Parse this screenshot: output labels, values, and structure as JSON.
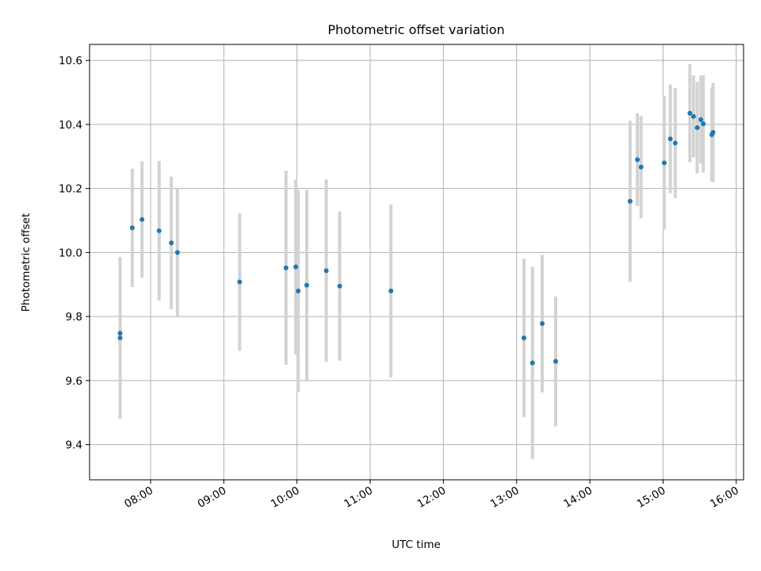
{
  "chart_data": {
    "type": "scatter",
    "title": "Photometric offset variation",
    "xlabel": "UTC time",
    "ylabel": "Photometric offset",
    "x_axis_type": "time",
    "xlim": [
      "07:10",
      "16:06"
    ],
    "ylim": [
      9.29,
      10.65
    ],
    "x_ticks": [
      "08:00",
      "09:00",
      "10:00",
      "11:00",
      "12:00",
      "13:00",
      "14:00",
      "15:00",
      "16:00"
    ],
    "y_ticks": [
      9.4,
      9.6,
      9.8,
      10.0,
      10.2,
      10.4,
      10.6
    ],
    "grid": true,
    "legend": "none",
    "point_color": "#1f77b4",
    "errorbar_color": "#d3d3d3",
    "points": [
      {
        "time": "07:35",
        "y": 9.733,
        "err": 0.253
      },
      {
        "time": "07:35",
        "y": 9.748,
        "err": 0.238
      },
      {
        "time": "07:45",
        "y": 10.077,
        "err": 0.185
      },
      {
        "time": "07:53",
        "y": 10.103,
        "err": 0.182
      },
      {
        "time": "08:07",
        "y": 10.068,
        "err": 0.218
      },
      {
        "time": "08:17",
        "y": 10.03,
        "err": 0.207
      },
      {
        "time": "08:22",
        "y": 10.0,
        "err": 0.2
      },
      {
        "time": "09:13",
        "y": 9.908,
        "err": 0.215
      },
      {
        "time": "09:51",
        "y": 9.952,
        "err": 0.303
      },
      {
        "time": "09:59",
        "y": 9.955,
        "err": 0.273
      },
      {
        "time": "10:01",
        "y": 9.88,
        "err": 0.315
      },
      {
        "time": "10:08",
        "y": 9.898,
        "err": 0.297
      },
      {
        "time": "10:24",
        "y": 9.943,
        "err": 0.285
      },
      {
        "time": "10:35",
        "y": 9.895,
        "err": 0.233
      },
      {
        "time": "11:17",
        "y": 9.88,
        "err": 0.27
      },
      {
        "time": "13:06",
        "y": 9.733,
        "err": 0.247
      },
      {
        "time": "13:13",
        "y": 9.655,
        "err": 0.3
      },
      {
        "time": "13:21",
        "y": 9.778,
        "err": 0.215
      },
      {
        "time": "13:32",
        "y": 9.66,
        "err": 0.203
      },
      {
        "time": "14:33",
        "y": 10.16,
        "err": 0.252
      },
      {
        "time": "14:39",
        "y": 10.29,
        "err": 0.145
      },
      {
        "time": "14:42",
        "y": 10.267,
        "err": 0.16
      },
      {
        "time": "15:01",
        "y": 10.28,
        "err": 0.208
      },
      {
        "time": "15:06",
        "y": 10.355,
        "err": 0.17
      },
      {
        "time": "15:10",
        "y": 10.342,
        "err": 0.172
      },
      {
        "time": "15:22",
        "y": 10.435,
        "err": 0.153
      },
      {
        "time": "15:25",
        "y": 10.425,
        "err": 0.128
      },
      {
        "time": "15:28",
        "y": 10.39,
        "err": 0.143
      },
      {
        "time": "15:31",
        "y": 10.415,
        "err": 0.137
      },
      {
        "time": "15:33",
        "y": 10.402,
        "err": 0.152
      },
      {
        "time": "15:40",
        "y": 10.368,
        "err": 0.147
      },
      {
        "time": "15:41",
        "y": 10.375,
        "err": 0.155
      }
    ]
  }
}
